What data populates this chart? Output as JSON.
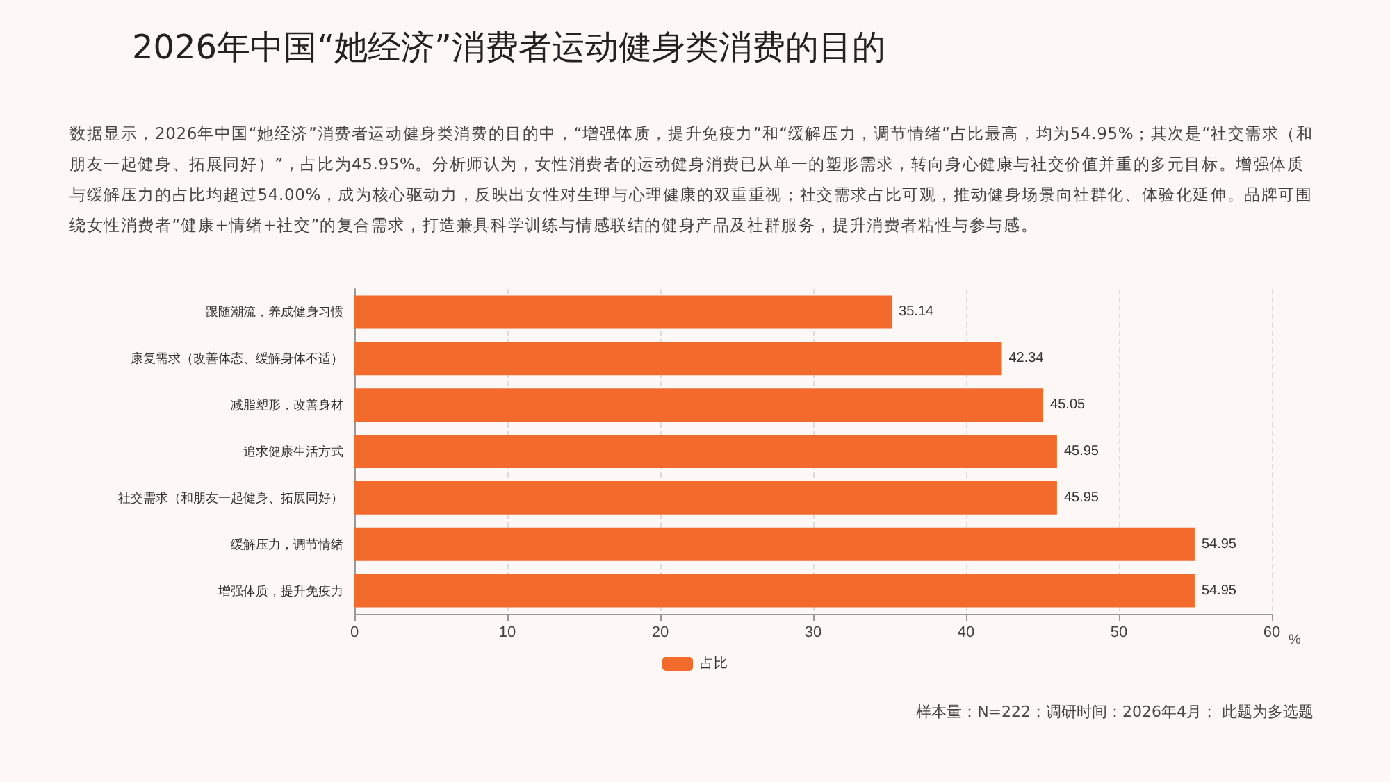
{
  "chart_data": {
    "type": "bar",
    "orientation": "horizontal",
    "title": "2026年中国“她经济”消费者运动健身类消费的目的",
    "subtitle": "数据显示，2026年中国“她经济”消费者运动健身类消费的目的中，“增强体质，提升免疫力”和“缓解压力，调节情绪”占比最高，均为54.95%；其次是“社交需求（和朋友一起健身、拓展同好）”，占比为45.95%。分析师认为，女性消费者的运动健身消费已从单一的塑形需求，转向身心健康与社交价值并重的多元目标。增强体质与缓解压力的占比均超过54.00%，成为核心驱动力，反映出女性对生理与心理健康的双重重视；社交需求占比可观，推动健身场景向社群化、体验化延伸。品牌可围绕女性消费者“健康+情绪+社交”的复合需求，打造兼具科学训练与情感联结的健身产品及社群服务，提升消费者粘性与参与感。",
    "xlabel": "%",
    "categories": [
      "跟随潮流，养成健身习惯",
      "康复需求（改善体态、缓解身体不适）",
      "减脂塑形，改善身材",
      "追求健康生活方式",
      "社交需求（和朋友一起健身、拓展同好）",
      "缓解压力，调节情绪",
      "增强体质，提升免疫力"
    ],
    "series": [
      {
        "name": "占比",
        "color": "#f26b2c",
        "values": [
          35.14,
          42.34,
          45.05,
          45.95,
          45.95,
          54.95,
          54.95
        ]
      }
    ],
    "xlim": [
      0,
      60
    ],
    "xticks": [
      0,
      10,
      20,
      30,
      40,
      50,
      60
    ],
    "grid": "x",
    "legend": "bottom",
    "data_labels": true,
    "annotations": [
      "样本量：N=222；调研时间：2026年4月； 此题为多选题"
    ]
  }
}
